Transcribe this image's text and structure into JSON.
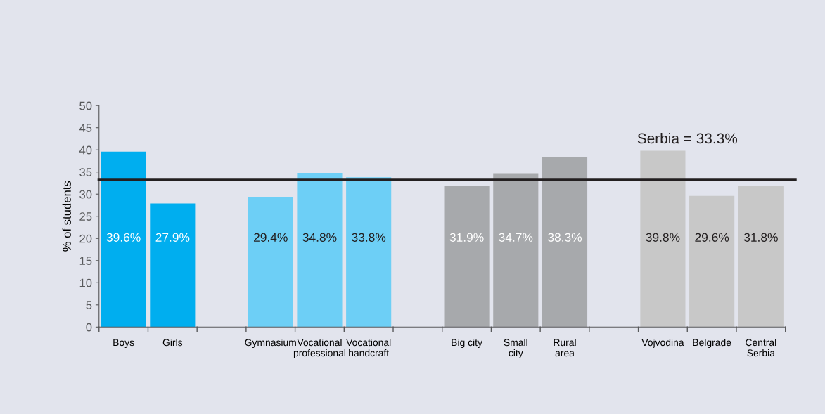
{
  "chart_data": {
    "type": "bar",
    "ylabel": "% of students",
    "categories": [
      "Boys",
      "Girls",
      null,
      "Gymnasium",
      "Vocational\nprofessional",
      "Vocational\nhandcraft",
      null,
      "Big city",
      "Small\ncity",
      "Rural\narea",
      null,
      "Vojvodina",
      "Belgrade",
      "Central\nSerbia"
    ],
    "values": [
      39.6,
      27.9,
      null,
      29.4,
      34.8,
      33.8,
      null,
      31.9,
      34.7,
      38.3,
      null,
      39.8,
      29.6,
      31.8
    ],
    "colors": [
      "#00aeef",
      "#00aeef",
      null,
      "#6dcff6",
      "#6dcff6",
      "#6dcff6",
      null,
      "#a7a9ac",
      "#a7a9ac",
      "#a7a9ac",
      null,
      "#c8c8c8",
      "#c8c8c8",
      "#c8c8c8"
    ],
    "value_labels": [
      "39.6%",
      "27.9%",
      null,
      "29.4%",
      "34.8%",
      "33.8%",
      null,
      "31.9%",
      "34.7%",
      "38.3%",
      null,
      "39.8%",
      "29.6%",
      "31.8%"
    ],
    "ylim": [
      0,
      50
    ],
    "yticks": [
      0,
      5,
      10,
      15,
      20,
      25,
      30,
      35,
      40,
      45,
      50
    ],
    "ref_lines": [
      {
        "axis": "y",
        "value": 33.3,
        "label": "Serbia = 33.3%",
        "color": "#231f20"
      }
    ],
    "grid": false,
    "legend": false
  }
}
